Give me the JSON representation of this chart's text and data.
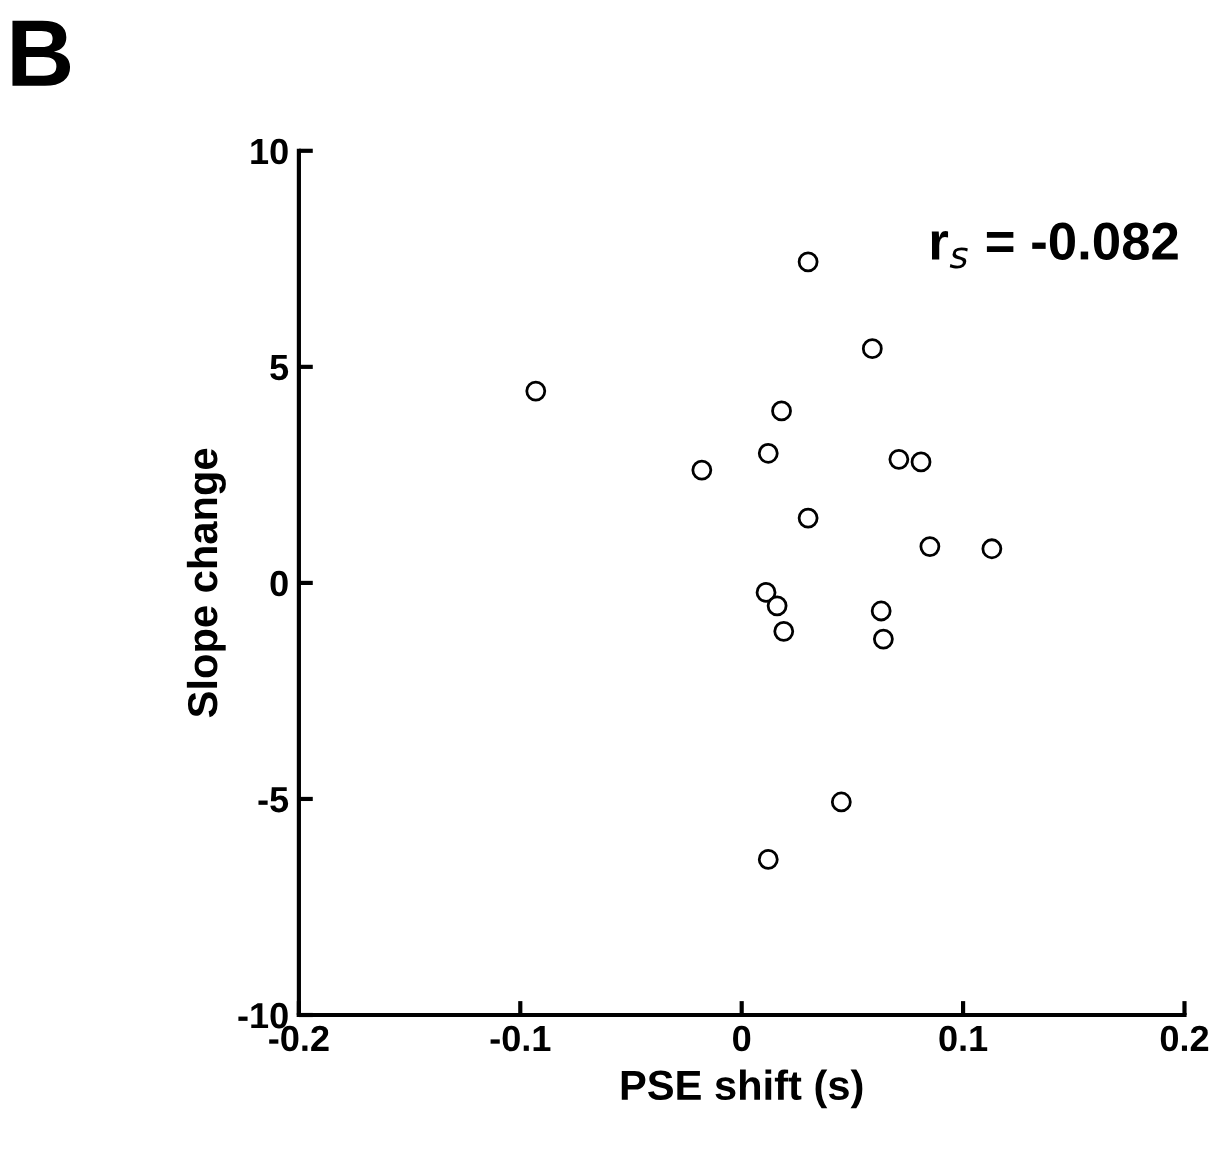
{
  "chart_data": {
    "type": "scatter",
    "title": "B",
    "xlabel": "PSE shift (s)",
    "ylabel": "Slope change",
    "annotations": [
      "r$_{s}$ = -0.082"
    ],
    "x": [
      0.03,
      0.059,
      -0.093,
      0.018,
      0.012,
      -0.018,
      0.071,
      0.081,
      0.03,
      0.085,
      0.113,
      0.011,
      0.016,
      0.019,
      0.063,
      0.064,
      0.045,
      0.012
    ],
    "series": [
      {
        "color": "#000000",
        "values": [
          7.43,
          5.42,
          4.44,
          3.98,
          3.0,
          2.61,
          2.86,
          2.8,
          1.5,
          0.84,
          0.79,
          -0.22,
          -0.53,
          -1.12,
          -0.65,
          -1.3,
          -5.07,
          -6.4
        ]
      }
    ],
    "xlim": [
      -0.2,
      0.2
    ],
    "xticks": [
      -0.2,
      -0.1,
      0,
      0.1,
      0.2
    ],
    "ylim": [
      -10,
      10
    ],
    "yticks": [
      -10,
      -5,
      0,
      5,
      10
    ],
    "marker": "circle",
    "grid": false,
    "legend": false
  }
}
